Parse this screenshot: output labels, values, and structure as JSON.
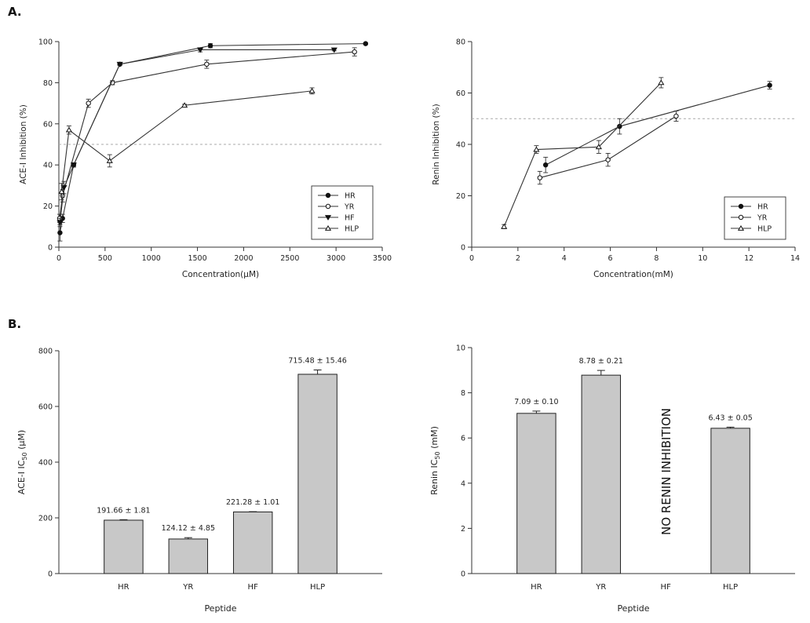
{
  "panel_labels": {
    "a": "A.",
    "b": "B."
  },
  "chart_data": [
    {
      "id": "ace-line",
      "type": "line",
      "title": "",
      "xlabel": "Concentration(μM)",
      "ylabel": "ACE-I Inhibition (%)",
      "xlim": [
        0,
        3500
      ],
      "ylim": [
        0,
        100
      ],
      "xticks": [
        0,
        500,
        1000,
        1500,
        2000,
        2500,
        3000,
        3500
      ],
      "yticks": [
        0,
        20,
        40,
        60,
        80,
        100
      ],
      "reference_line": 50,
      "legend_position": "bottom-right",
      "series": [
        {
          "name": "HR",
          "marker": "filled-circle",
          "x": [
            12,
            40,
            160,
            660,
            1640,
            3320
          ],
          "y": [
            7,
            14,
            40,
            89,
            98,
            99
          ],
          "err": [
            4,
            2,
            1,
            0.5,
            1,
            0.5
          ]
        },
        {
          "name": "YR",
          "marker": "open-circle",
          "x": [
            8,
            40,
            320,
            580,
            1600,
            3200
          ],
          "y": [
            14,
            25,
            70,
            80,
            89,
            95
          ],
          "err": [
            2,
            3,
            2,
            1,
            2,
            2
          ]
        },
        {
          "name": "HF",
          "marker": "filled-triangle-down",
          "x": [
            12,
            55,
            160,
            660,
            1530,
            2980
          ],
          "y": [
            12,
            29,
            40,
            89,
            96,
            96
          ],
          "err": [
            2,
            3,
            1,
            0.5,
            1,
            0.5
          ]
        },
        {
          "name": "HLP",
          "marker": "open-triangle-up",
          "x": [
            30,
            110,
            550,
            1360,
            2740
          ],
          "y": [
            27,
            57,
            42,
            69,
            76
          ],
          "err": [
            4,
            2,
            3,
            0.5,
            1.5
          ]
        }
      ]
    },
    {
      "id": "renin-line",
      "type": "line",
      "title": "",
      "xlabel": "Concentration(mM)",
      "ylabel": "Renin Inhibition (%)",
      "xlim": [
        0,
        14
      ],
      "ylim": [
        0,
        80
      ],
      "xticks": [
        0,
        2,
        4,
        6,
        8,
        10,
        12,
        14
      ],
      "yticks": [
        0,
        20,
        40,
        60,
        80
      ],
      "reference_line": 50,
      "legend_position": "bottom-right",
      "series": [
        {
          "name": "HR",
          "marker": "filled-circle",
          "x": [
            3.2,
            6.4,
            12.9
          ],
          "y": [
            32,
            47,
            63
          ],
          "err": [
            3,
            3,
            1.5
          ]
        },
        {
          "name": "YR",
          "marker": "open-circle",
          "x": [
            2.95,
            5.9,
            8.85
          ],
          "y": [
            27,
            34,
            51
          ],
          "err": [
            2.5,
            2.5,
            2
          ]
        },
        {
          "name": "HLP",
          "marker": "open-triangle-up",
          "x": [
            1.4,
            2.8,
            5.5,
            8.2
          ],
          "y": [
            8,
            38,
            39,
            64
          ],
          "err": [
            0.8,
            1.5,
            2.5,
            2
          ]
        }
      ]
    },
    {
      "id": "ace-bar",
      "type": "bar",
      "title": "",
      "xlabel": "Peptide",
      "ylabel_main": "ACE-I IC",
      "ylabel_sub": "50",
      "ylabel_unit": "(μM)",
      "ylim": [
        0,
        800
      ],
      "yticks": [
        0,
        200,
        400,
        600,
        800
      ],
      "categories": [
        "HR",
        "YR",
        "HF",
        "HLP"
      ],
      "values": [
        191.66,
        124.12,
        221.28,
        715.48
      ],
      "errors": [
        1.81,
        4.85,
        1.01,
        15.46
      ],
      "data_labels": [
        "191.66 ± 1.81",
        "124.12 ± 4.85",
        "221.28 ± 1.01",
        "715.48 ± 15.46"
      ],
      "bar_color": "#c8c8c8"
    },
    {
      "id": "renin-bar",
      "type": "bar",
      "title": "",
      "xlabel": "Peptide",
      "ylabel_main": "Renin IC",
      "ylabel_sub": "50",
      "ylabel_unit": "(mM)",
      "ylim": [
        0,
        10
      ],
      "yticks": [
        0,
        2,
        4,
        6,
        8,
        10
      ],
      "categories": [
        "HR",
        "YR",
        "HF",
        "HLP"
      ],
      "values": [
        7.09,
        8.78,
        null,
        6.43
      ],
      "errors": [
        0.1,
        0.21,
        null,
        0.05
      ],
      "data_labels": [
        "7.09 ± 0.10",
        "8.78 ± 0.21",
        "",
        "6.43 ± 0.05"
      ],
      "annotation": "NO RENIN INHIBITION",
      "bar_color": "#c8c8c8"
    }
  ]
}
